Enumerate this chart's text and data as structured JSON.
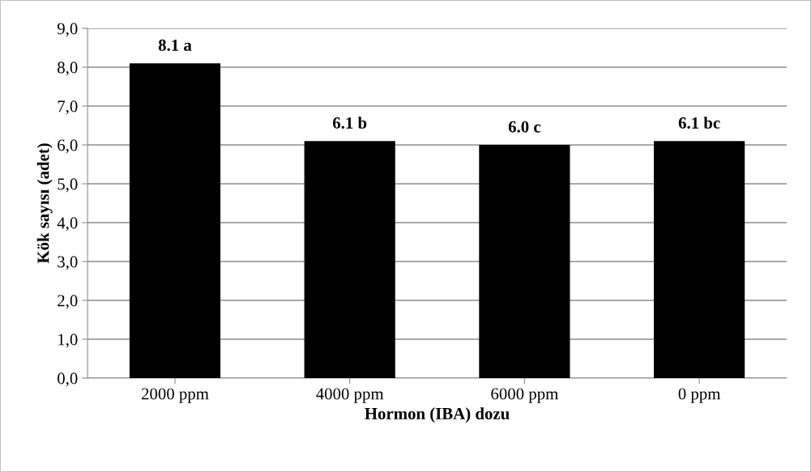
{
  "chart_data": {
    "type": "bar",
    "xlabel": "Hormon (IBA) dozu",
    "ylabel": "Kök sayısı (adet)",
    "categories": [
      "2000 ppm",
      "4000 ppm",
      "6000 ppm",
      "0 ppm"
    ],
    "values": [
      8.1,
      6.1,
      6.0,
      6.1
    ],
    "color": "#000000",
    "value_labels": [
      "8.1 a",
      "6.1 b",
      "6.0 c",
      "6.1 bc"
    ],
    "ylim": [
      0,
      9
    ],
    "yticks": [
      {
        "value": 0,
        "label": "0,0"
      },
      {
        "value": 1,
        "label": "1,0"
      },
      {
        "value": 2,
        "label": "2,0"
      },
      {
        "value": 3,
        "label": "3,0"
      },
      {
        "value": 4,
        "label": "4,0"
      },
      {
        "value": 5,
        "label": "5,0"
      },
      {
        "value": 6,
        "label": "6,0"
      },
      {
        "value": 7,
        "label": "7,0"
      },
      {
        "value": 8,
        "label": "8,0"
      },
      {
        "value": 9,
        "label": "9,0"
      }
    ],
    "grid": "y",
    "legend": false
  }
}
